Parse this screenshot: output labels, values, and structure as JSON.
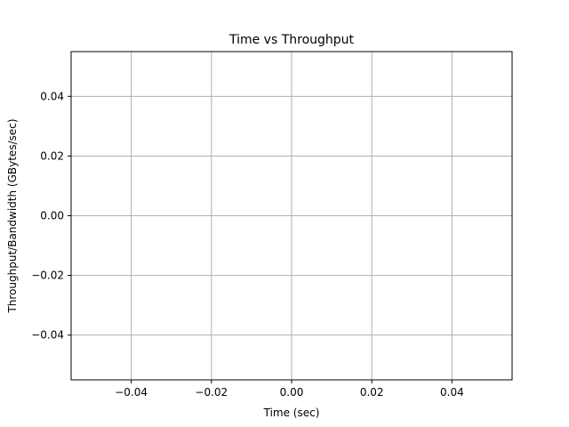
{
  "chart_data": {
    "type": "line",
    "title": "Time vs Throughput",
    "xlabel": "Time (sec)",
    "ylabel": "Throughput/Bandwidth (GBytes/sec)",
    "xlim": [
      -0.055,
      0.055
    ],
    "ylim": [
      -0.055,
      0.055
    ],
    "xticks": [
      -0.04,
      -0.02,
      0.0,
      0.02,
      0.04
    ],
    "xtick_labels": [
      "−0.04",
      "−0.02",
      "0.00",
      "0.02",
      "0.04"
    ],
    "yticks": [
      -0.04,
      -0.02,
      0.0,
      0.02,
      0.04
    ],
    "ytick_labels": [
      "−0.04",
      "−0.02",
      "0.00",
      "0.02",
      "0.04"
    ],
    "grid": true,
    "series": [],
    "colors": {
      "grid": "#b0b0b0",
      "axes": "#000000",
      "background": "#ffffff"
    }
  }
}
